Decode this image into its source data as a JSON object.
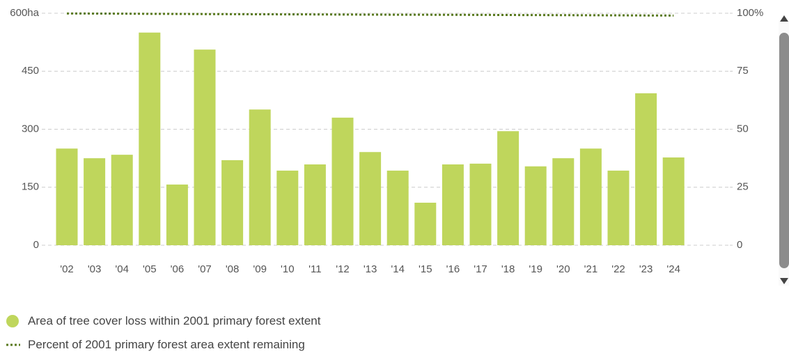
{
  "chart_data": {
    "type": "bar",
    "categories": [
      "'02",
      "'03",
      "'04",
      "'05",
      "'06",
      "'07",
      "'08",
      "'09",
      "'10",
      "'11",
      "'12",
      "'13",
      "'14",
      "'15",
      "'16",
      "'17",
      "'18",
      "'19",
      "'20",
      "'21",
      "'22",
      "'23",
      "'24"
    ],
    "series": [
      {
        "name": "Area of tree cover loss within 2001 primary forest extent",
        "color": "#bfd65c",
        "values": [
          250,
          225,
          234,
          550,
          157,
          506,
          220,
          351,
          193,
          209,
          330,
          241,
          193,
          110,
          209,
          211,
          295,
          204,
          225,
          250,
          193,
          393,
          227
        ]
      },
      {
        "name": "Percent of 2001 primary forest area extent remaining",
        "color": "#5a7a1f",
        "type": "line",
        "axis": "y2",
        "values": [
          99.9,
          99.86,
          99.82,
          99.74,
          99.71,
          99.64,
          99.6,
          99.55,
          99.52,
          99.49,
          99.44,
          99.4,
          99.37,
          99.35,
          99.32,
          99.29,
          99.24,
          99.21,
          99.17,
          99.13,
          99.1,
          99.04,
          99.0
        ]
      }
    ],
    "ylim": [
      0,
      600
    ],
    "yticks": [
      0,
      150,
      300,
      450,
      {
        "value": 600,
        "label": "600ha"
      }
    ],
    "y2lim": [
      0,
      100
    ],
    "y2ticks": [
      0,
      25,
      50,
      75,
      {
        "value": 100,
        "label": "100%"
      }
    ],
    "grid": true
  }
}
